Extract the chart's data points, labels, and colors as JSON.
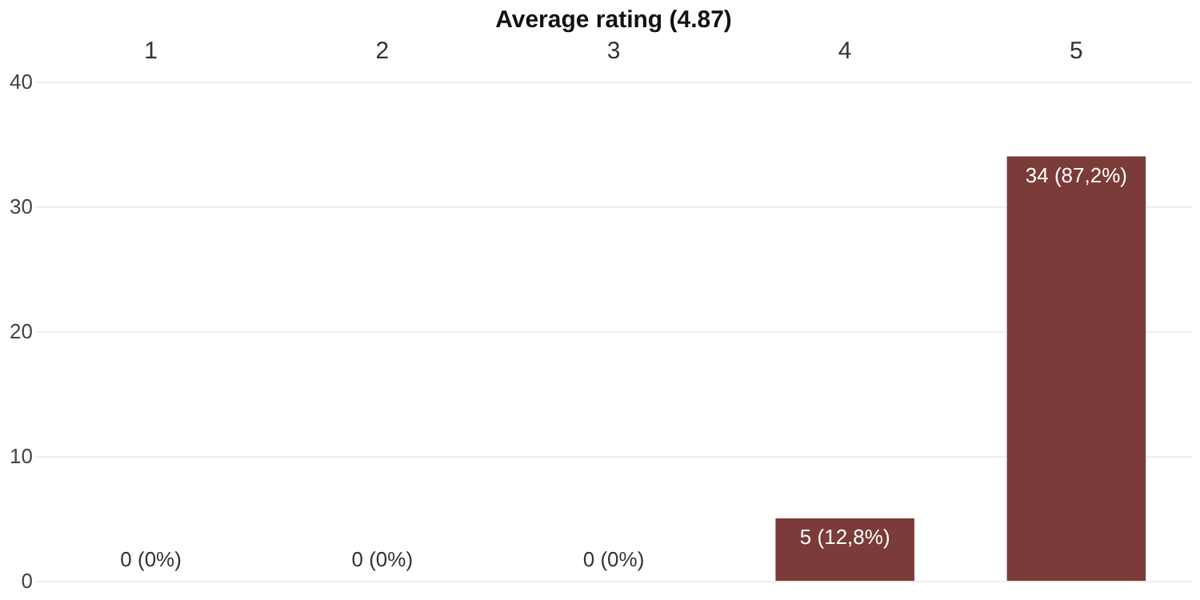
{
  "chart_data": {
    "type": "bar",
    "title": "Average rating (4.87)",
    "categories": [
      "1",
      "2",
      "3",
      "4",
      "5"
    ],
    "values": [
      0,
      0,
      0,
      5,
      34
    ],
    "value_labels": [
      "0 (0%)",
      "0 (0%)",
      "0 (0%)",
      "5 (12,8%)",
      "34 (87,2%)"
    ],
    "color": "#7b3b38",
    "ylim": [
      0,
      40
    ],
    "yticks": [
      0,
      10,
      20,
      30,
      40
    ],
    "grid": "y"
  }
}
